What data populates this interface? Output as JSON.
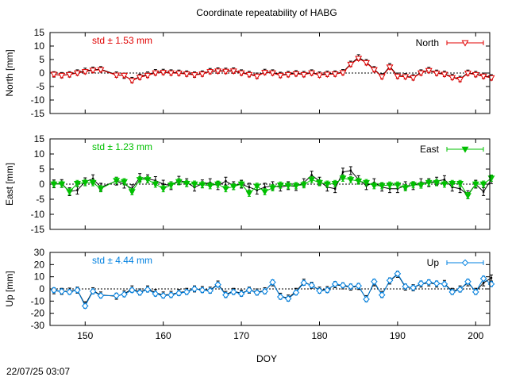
{
  "page": {
    "title": "Coordinate repeatability of HABG",
    "timestamp": "22/07/25 03:07"
  },
  "chart_data": {
    "type": "line",
    "title": "Coordinate repeatability of HABG",
    "xlabel": "DOY",
    "xlim": [
      145.5,
      201.8
    ],
    "xticks": [
      150,
      160,
      170,
      180,
      190,
      200
    ],
    "x": [
      146,
      147,
      148,
      149,
      150,
      151,
      152,
      154,
      155,
      156,
      157,
      158,
      159,
      160,
      161,
      162,
      163,
      164,
      165,
      166,
      167,
      168,
      169,
      170,
      171,
      172,
      173,
      174,
      175,
      176,
      177,
      178,
      179,
      180,
      181,
      182,
      183,
      184,
      185,
      186,
      187,
      188,
      189,
      190,
      191,
      192,
      193,
      194,
      195,
      196,
      197,
      198,
      199,
      200,
      201,
      202
    ],
    "panels": [
      {
        "name": "north",
        "ylabel": "North [mm]",
        "ylim": [
          -15,
          15
        ],
        "yticks": [
          -15,
          -10,
          -5,
          0,
          5,
          10,
          15
        ],
        "std_label": "std ± 1.53 mm",
        "std_color": "#e00000",
        "legend": "North",
        "color": "#e00000",
        "marker": "triangle-down-open",
        "err": 1.0,
        "y_ref": [
          -0.5,
          -0.8,
          -0.5,
          0.2,
          0.8,
          1.2,
          1.4,
          -0.6,
          -1.0,
          -2.6,
          -1.4,
          -0.6,
          0.3,
          0.4,
          0.2,
          0.1,
          -0.2,
          -0.6,
          -0.2,
          0.7,
          0.9,
          0.8,
          0.9,
          0.2,
          -0.4,
          -1.0,
          0.4,
          0.2,
          -0.7,
          -0.4,
          -0.1,
          -0.4,
          0.2,
          -0.6,
          -0.3,
          -0.2,
          0.3,
          3.4,
          5.8,
          4.0,
          1.4,
          -1.2,
          2.5,
          -1.0,
          -1.2,
          -1.6,
          0.2,
          1.1,
          0.1,
          -0.3,
          -1.5,
          -2.2,
          0.1,
          -0.4,
          -1.0,
          -1.6
        ],
        "y_obs": [
          -0.5,
          -0.9,
          -0.6,
          0.0,
          0.5,
          1.0,
          1.2,
          -0.8,
          -0.9,
          -2.8,
          -1.6,
          -0.9,
          0.0,
          0.2,
          0.0,
          -0.1,
          -0.4,
          -0.7,
          -0.4,
          0.5,
          0.7,
          0.6,
          0.7,
          0.0,
          -0.6,
          -1.2,
          0.2,
          0.0,
          -0.9,
          -0.6,
          -0.3,
          -0.6,
          0.0,
          -0.8,
          -0.5,
          -0.4,
          0.1,
          3.2,
          5.4,
          3.8,
          1.2,
          -1.4,
          2.2,
          -1.2,
          -1.4,
          -1.8,
          0.0,
          0.9,
          -0.1,
          -0.5,
          -1.7,
          -2.4,
          -0.1,
          -0.6,
          -1.2,
          -1.8
        ]
      },
      {
        "name": "east",
        "ylabel": "East [mm]",
        "ylim": [
          -15,
          15
        ],
        "yticks": [
          -15,
          -10,
          -5,
          0,
          5,
          10,
          15
        ],
        "std_label": "std ± 1.23 mm",
        "std_color": "#00c000",
        "legend": "East",
        "color": "#00c000",
        "marker": "triangle-down-filled",
        "err": 1.3,
        "y_ref": [
          0.1,
          0.2,
          -2.5,
          -2.0,
          0.8,
          1.8,
          -1.0,
          1.0,
          0.0,
          -1.5,
          2.2,
          1.8,
          1.2,
          0.0,
          -0.5,
          1.3,
          0.5,
          -1.0,
          0.1,
          0.5,
          -0.5,
          1.0,
          -0.5,
          0.0,
          -1.0,
          -2.0,
          -1.0,
          -0.5,
          -1.0,
          -0.5,
          -0.8,
          0.5,
          3.0,
          1.0,
          -1.0,
          -1.5,
          4.0,
          4.5,
          1.5,
          -0.5,
          0.5,
          -1.0,
          -1.5,
          -1.5,
          -0.5,
          -0.5,
          0.5,
          0.5,
          1.0,
          1.5,
          -1.0,
          -1.5,
          -3.5,
          0.0,
          -2.5,
          1.5
        ],
        "y_obs": [
          0.0,
          0.0,
          -2.5,
          0.2,
          0.5,
          0.5,
          -1.5,
          1.2,
          0.8,
          -2.5,
          1.5,
          1.5,
          0.0,
          -1.5,
          -0.3,
          0.8,
          0.2,
          0.0,
          -0.2,
          -0.5,
          0.0,
          -1.5,
          -0.8,
          0.0,
          -3.0,
          -0.7,
          -2.5,
          -1.2,
          -0.3,
          -0.5,
          -0.5,
          -0.2,
          1.5,
          0.5,
          0.0,
          0.2,
          2.0,
          1.5,
          1.0,
          0.5,
          -0.5,
          -0.5,
          -0.3,
          -0.3,
          -1.2,
          -0.2,
          -0.3,
          0.5,
          0.5,
          0.0,
          0.2,
          0.2,
          -3.8,
          0.0,
          0.0,
          2.0
        ]
      },
      {
        "name": "up",
        "ylabel": "Up [mm]",
        "ylim": [
          -30,
          30
        ],
        "yticks": [
          -30,
          -20,
          -10,
          0,
          10,
          20,
          30
        ],
        "std_label": "std ± 4.44 mm",
        "std_color": "#0080e0",
        "legend": "Up",
        "color": "#0080e0",
        "marker": "diamond-open",
        "err": 2.5,
        "y_ref": [
          -1.5,
          -2.0,
          -1.8,
          -1.0,
          -13.0,
          -1.5,
          -5.0,
          -6.0,
          -4.0,
          0.0,
          -2.5,
          0.0,
          -3.0,
          -5.0,
          -4.5,
          -3.0,
          -2.0,
          0.0,
          -0.5,
          -1.0,
          4.0,
          -4.5,
          -2.0,
          -3.5,
          -1.0,
          -2.5,
          -1.5,
          5.0,
          -6.0,
          -7.5,
          -2.0,
          5.5,
          3.0,
          -1.0,
          -0.5,
          3.5,
          2.5,
          1.5,
          2.0,
          -8.0,
          5.0,
          -4.5,
          6.5,
          12.0,
          1.5,
          1.0,
          4.0,
          5.0,
          4.0,
          4.5,
          -2.0,
          0.0,
          5.0,
          -2.0,
          5.0,
          9.0
        ],
        "y_obs": [
          -1.0,
          -2.0,
          -2.5,
          -1.0,
          -14.0,
          -2.0,
          -5.5,
          -5.5,
          -4.5,
          -1.0,
          -3.0,
          -0.5,
          -4.0,
          -5.5,
          -5.0,
          -3.5,
          -2.5,
          0.0,
          -1.0,
          -1.5,
          3.5,
          -5.0,
          -2.5,
          -4.0,
          -1.0,
          -3.0,
          -2.0,
          5.5,
          -6.5,
          -8.0,
          -3.0,
          5.0,
          3.0,
          -1.5,
          -1.0,
          4.0,
          3.0,
          2.0,
          2.5,
          -8.5,
          6.0,
          -5.0,
          7.0,
          12.5,
          2.0,
          1.0,
          4.5,
          5.5,
          4.5,
          4.0,
          -2.5,
          -0.5,
          6.0,
          -2.5,
          8.5,
          4.0
        ]
      }
    ]
  }
}
